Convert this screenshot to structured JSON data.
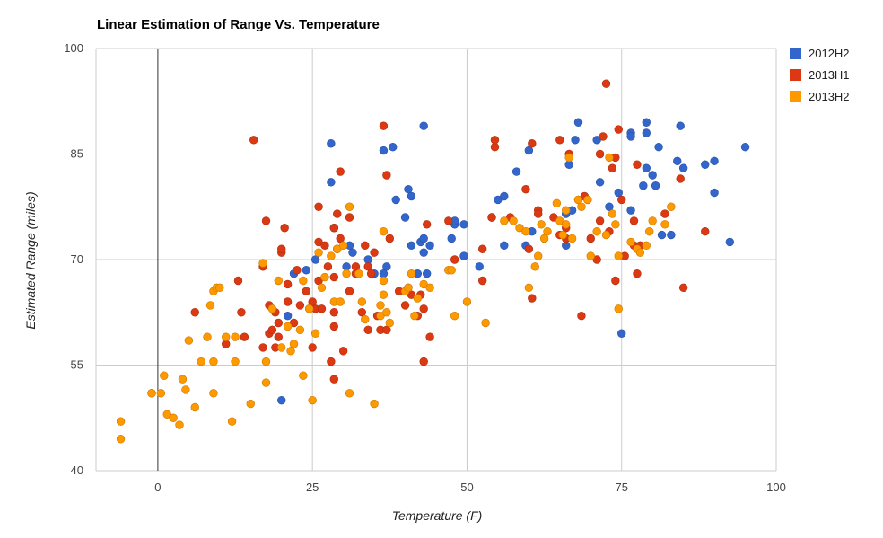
{
  "chart_data": {
    "type": "scatter",
    "title": "Linear Estimation of Range Vs. Temperature",
    "xlabel": "Temperature (F)",
    "ylabel": "Estimated Range (miles)",
    "xlim": [
      -10,
      100
    ],
    "ylim": [
      40,
      100
    ],
    "xticks": [
      0,
      25,
      50,
      75,
      100
    ],
    "yticks": [
      40,
      55,
      70,
      85,
      100
    ],
    "legend_position": "right",
    "series": [
      {
        "name": "2012H2",
        "color": "#3366cc",
        "points": [
          [
            20,
            50
          ],
          [
            21,
            62
          ],
          [
            22,
            68
          ],
          [
            24,
            68.5
          ],
          [
            25.5,
            70
          ],
          [
            28,
            81
          ],
          [
            28,
            86.5
          ],
          [
            28.5,
            74.5
          ],
          [
            30.5,
            69
          ],
          [
            31,
            72
          ],
          [
            31.5,
            71
          ],
          [
            34,
            70
          ],
          [
            35,
            68
          ],
          [
            36.5,
            68
          ],
          [
            36.5,
            85.5
          ],
          [
            37,
            69
          ],
          [
            38,
            86
          ],
          [
            38.5,
            78.5
          ],
          [
            40,
            76
          ],
          [
            40.5,
            80
          ],
          [
            41,
            79
          ],
          [
            41,
            72
          ],
          [
            42,
            68
          ],
          [
            42.5,
            72.5
          ],
          [
            43,
            73
          ],
          [
            43,
            71
          ],
          [
            43,
            89
          ],
          [
            43.5,
            68
          ],
          [
            44,
            72
          ],
          [
            47.5,
            73
          ],
          [
            48,
            75
          ],
          [
            48,
            75.5
          ],
          [
            49.5,
            75
          ],
          [
            49.5,
            70.5
          ],
          [
            52,
            69
          ],
          [
            54,
            76
          ],
          [
            55,
            78.5
          ],
          [
            56,
            79
          ],
          [
            56,
            72
          ],
          [
            58,
            82.5
          ],
          [
            59.5,
            72
          ],
          [
            60,
            85.5
          ],
          [
            60.5,
            74
          ],
          [
            66,
            72
          ],
          [
            66,
            76.5
          ],
          [
            66.5,
            83.5
          ],
          [
            67,
            77
          ],
          [
            67.5,
            87
          ],
          [
            68,
            89.5
          ],
          [
            71,
            87
          ],
          [
            71.5,
            81
          ],
          [
            73,
            77.5
          ],
          [
            74.5,
            79.5
          ],
          [
            75,
            59.5
          ],
          [
            76.5,
            88
          ],
          [
            76.5,
            87.5
          ],
          [
            76.5,
            77
          ],
          [
            78.5,
            80.5
          ],
          [
            79,
            83
          ],
          [
            79,
            89.5
          ],
          [
            79,
            88
          ],
          [
            80,
            82
          ],
          [
            80.5,
            80.5
          ],
          [
            81,
            86
          ],
          [
            81.5,
            73.5
          ],
          [
            83,
            73.5
          ],
          [
            84,
            84
          ],
          [
            84.5,
            89
          ],
          [
            85,
            83
          ],
          [
            88.5,
            83.5
          ],
          [
            90,
            84
          ],
          [
            90,
            79.5
          ],
          [
            92.5,
            72.5
          ],
          [
            95,
            86
          ]
        ]
      },
      {
        "name": "2013H1",
        "color": "#dc3912",
        "points": [
          [
            -1,
            51
          ],
          [
            6,
            62.5
          ],
          [
            11,
            58
          ],
          [
            13,
            67
          ],
          [
            13.5,
            62.5
          ],
          [
            14,
            59
          ],
          [
            15.5,
            87
          ],
          [
            17,
            69
          ],
          [
            17,
            57.5
          ],
          [
            17.5,
            75.5
          ],
          [
            18,
            63.5
          ],
          [
            18,
            59.5
          ],
          [
            18.5,
            60
          ],
          [
            19,
            62.5
          ],
          [
            19,
            57.5
          ],
          [
            19.5,
            61
          ],
          [
            19.5,
            59
          ],
          [
            20,
            71
          ],
          [
            20,
            71.5
          ],
          [
            20.5,
            74.5
          ],
          [
            21,
            64
          ],
          [
            21,
            66.5
          ],
          [
            22,
            61
          ],
          [
            22.5,
            68.5
          ],
          [
            23,
            63.5
          ],
          [
            24,
            65.5
          ],
          [
            24.5,
            63
          ],
          [
            25,
            57.5
          ],
          [
            25,
            64
          ],
          [
            25.5,
            63
          ],
          [
            26,
            72.5
          ],
          [
            26,
            77.5
          ],
          [
            26,
            67
          ],
          [
            26.5,
            63
          ],
          [
            27,
            72
          ],
          [
            27.5,
            69
          ],
          [
            28,
            55.5
          ],
          [
            28.5,
            67.5
          ],
          [
            28.5,
            74.5
          ],
          [
            28.5,
            60.5
          ],
          [
            28.5,
            62.5
          ],
          [
            28.5,
            53
          ],
          [
            29,
            76.5
          ],
          [
            29,
            71.5
          ],
          [
            29.5,
            82.5
          ],
          [
            29.5,
            73
          ],
          [
            30,
            57
          ],
          [
            31,
            65.5
          ],
          [
            31,
            76
          ],
          [
            32,
            69
          ],
          [
            32,
            68
          ],
          [
            33,
            62.5
          ],
          [
            33.5,
            72
          ],
          [
            34,
            60
          ],
          [
            34,
            69
          ],
          [
            34.5,
            68
          ],
          [
            35,
            71
          ],
          [
            35.5,
            62
          ],
          [
            36,
            60
          ],
          [
            36.5,
            89
          ],
          [
            37,
            82
          ],
          [
            37,
            60
          ],
          [
            37.5,
            73
          ],
          [
            39,
            65.5
          ],
          [
            40,
            63.5
          ],
          [
            40.5,
            66
          ],
          [
            41,
            65
          ],
          [
            42,
            62
          ],
          [
            42.5,
            65
          ],
          [
            43,
            63
          ],
          [
            43,
            55.5
          ],
          [
            43.5,
            75
          ],
          [
            44,
            59
          ],
          [
            47,
            75.5
          ],
          [
            48,
            70
          ],
          [
            52.5,
            71.5
          ],
          [
            52.5,
            67
          ],
          [
            54,
            76
          ],
          [
            54.5,
            86
          ],
          [
            54.5,
            87
          ],
          [
            57,
            76
          ],
          [
            59.5,
            80
          ],
          [
            60,
            71.5
          ],
          [
            60.5,
            64.5
          ],
          [
            60.5,
            86.5
          ],
          [
            61.5,
            77
          ],
          [
            61.5,
            76.5
          ],
          [
            64,
            76
          ],
          [
            65,
            73.5
          ],
          [
            65,
            87
          ],
          [
            66,
            73
          ],
          [
            66,
            74.5
          ],
          [
            66.5,
            85
          ],
          [
            68,
            78.5
          ],
          [
            68.5,
            62
          ],
          [
            69,
            79
          ],
          [
            69.5,
            78.5
          ],
          [
            70,
            73
          ],
          [
            71,
            70
          ],
          [
            71.5,
            75.5
          ],
          [
            71.5,
            85
          ],
          [
            72,
            87.5
          ],
          [
            72.5,
            95
          ],
          [
            73,
            74
          ],
          [
            73.5,
            83
          ],
          [
            74,
            67
          ],
          [
            74,
            84.5
          ],
          [
            74.5,
            88.5
          ],
          [
            75,
            78.5
          ],
          [
            75.5,
            70.5
          ],
          [
            77,
            72
          ],
          [
            77,
            75.5
          ],
          [
            77.5,
            68
          ],
          [
            77.5,
            83.5
          ],
          [
            78,
            72
          ],
          [
            82,
            76.5
          ],
          [
            84.5,
            81.5
          ],
          [
            85,
            66
          ],
          [
            88.5,
            74
          ]
        ]
      },
      {
        "name": "2013H2",
        "color": "#ff9900",
        "points": [
          [
            -6,
            47
          ],
          [
            -6,
            44.5
          ],
          [
            -1,
            51
          ],
          [
            0.5,
            51
          ],
          [
            1,
            53.5
          ],
          [
            1.5,
            48
          ],
          [
            2.5,
            47.5
          ],
          [
            3.5,
            46.5
          ],
          [
            4,
            53
          ],
          [
            4.5,
            51.5
          ],
          [
            5,
            58.5
          ],
          [
            6,
            49
          ],
          [
            7,
            55.5
          ],
          [
            8,
            59
          ],
          [
            8.5,
            63.5
          ],
          [
            9,
            51
          ],
          [
            9,
            55.5
          ],
          [
            9,
            65.5
          ],
          [
            9.5,
            66
          ],
          [
            10,
            66
          ],
          [
            11,
            59
          ],
          [
            12,
            47
          ],
          [
            12.5,
            59
          ],
          [
            12.5,
            55.5
          ],
          [
            15,
            49.5
          ],
          [
            17,
            69.5
          ],
          [
            17.5,
            55.5
          ],
          [
            17.5,
            52.5
          ],
          [
            18.5,
            63
          ],
          [
            19.5,
            67
          ],
          [
            20,
            57.5
          ],
          [
            21,
            60.5
          ],
          [
            21.5,
            57
          ],
          [
            22,
            58
          ],
          [
            23,
            60
          ],
          [
            23.5,
            67
          ],
          [
            23.5,
            53.5
          ],
          [
            24.5,
            63
          ],
          [
            25,
            50
          ],
          [
            25.5,
            59.5
          ],
          [
            26,
            71
          ],
          [
            26.5,
            66
          ],
          [
            27,
            67.5
          ],
          [
            28,
            70.5
          ],
          [
            28.5,
            64
          ],
          [
            29,
            71.5
          ],
          [
            29.5,
            64
          ],
          [
            30,
            72
          ],
          [
            30.5,
            68
          ],
          [
            31,
            77.5
          ],
          [
            31,
            51
          ],
          [
            32.5,
            68
          ],
          [
            33,
            64
          ],
          [
            33.5,
            61.5
          ],
          [
            35,
            49.5
          ],
          [
            36,
            63.5
          ],
          [
            36,
            62
          ],
          [
            36.5,
            74
          ],
          [
            36.5,
            67
          ],
          [
            36.5,
            65
          ],
          [
            37,
            62.5
          ],
          [
            37.5,
            61
          ],
          [
            40,
            65.5
          ],
          [
            40.5,
            66
          ],
          [
            41,
            68
          ],
          [
            41.5,
            62
          ],
          [
            42,
            64.5
          ],
          [
            43,
            66.5
          ],
          [
            44,
            66
          ],
          [
            47,
            68.5
          ],
          [
            47.5,
            68.5
          ],
          [
            48,
            62
          ],
          [
            50,
            64
          ],
          [
            53,
            61
          ],
          [
            56,
            75.5
          ],
          [
            57.5,
            75.5
          ],
          [
            58.5,
            74.5
          ],
          [
            59.5,
            74
          ],
          [
            60,
            66
          ],
          [
            61,
            69
          ],
          [
            61.5,
            70.5
          ],
          [
            62,
            75
          ],
          [
            62.5,
            73
          ],
          [
            63,
            74
          ],
          [
            64.5,
            78
          ],
          [
            65,
            75.5
          ],
          [
            65.5,
            73.5
          ],
          [
            66,
            75
          ],
          [
            66,
            77
          ],
          [
            66.5,
            84.5
          ],
          [
            67,
            73
          ],
          [
            68,
            78.5
          ],
          [
            68.5,
            77.5
          ],
          [
            69.5,
            78.5
          ],
          [
            70,
            70.5
          ],
          [
            71,
            74
          ],
          [
            72.5,
            73.5
          ],
          [
            73,
            84.5
          ],
          [
            73.5,
            76.5
          ],
          [
            74,
            75
          ],
          [
            74.5,
            63
          ],
          [
            74.5,
            70.5
          ],
          [
            76.5,
            72.5
          ],
          [
            77.5,
            71.5
          ],
          [
            78,
            71
          ],
          [
            79,
            72
          ],
          [
            79.5,
            74
          ],
          [
            80,
            75.5
          ],
          [
            82,
            75
          ],
          [
            83,
            77.5
          ]
        ]
      }
    ]
  }
}
